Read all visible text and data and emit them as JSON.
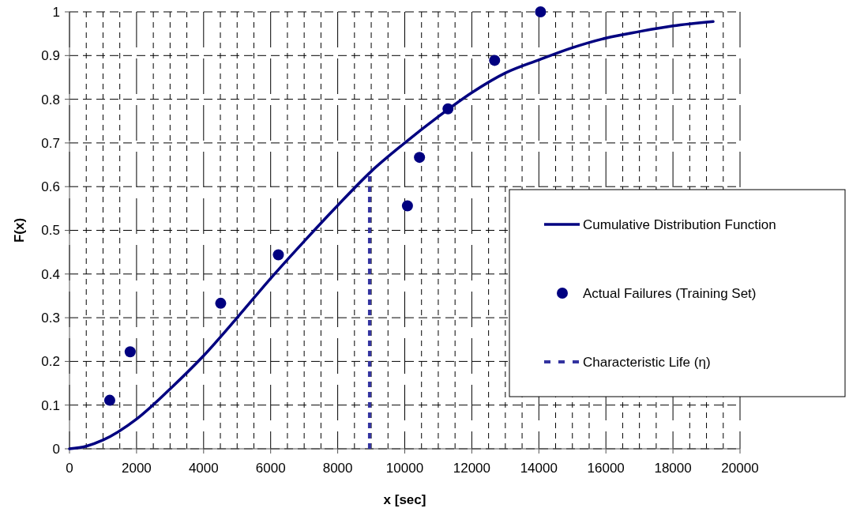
{
  "chart_data": {
    "type": "line",
    "xlabel": "x [sec]",
    "ylabel": "F(x)",
    "xlim": [
      0,
      20000
    ],
    "ylim": [
      0,
      1
    ],
    "xticks": [
      0,
      {
        "value": 500,
        "label": null
      },
      {
        "value": 1000,
        "label": null
      },
      {
        "value": 1500,
        "label": null
      },
      2000,
      {
        "value": 2500,
        "label": null
      },
      {
        "value": 3000,
        "label": null
      },
      {
        "value": 3500,
        "label": null
      },
      4000,
      {
        "value": 4500,
        "label": null
      },
      {
        "value": 5000,
        "label": null
      },
      {
        "value": 5500,
        "label": null
      },
      6000,
      {
        "value": 6500,
        "label": null
      },
      {
        "value": 7000,
        "label": null
      },
      {
        "value": 7500,
        "label": null
      },
      8000,
      {
        "value": 8500,
        "label": null
      },
      {
        "value": 9000,
        "label": null
      },
      {
        "value": 9500,
        "label": null
      },
      10000,
      {
        "value": 10500,
        "label": null
      },
      {
        "value": 11000,
        "label": null
      },
      {
        "value": 11500,
        "label": null
      },
      12000,
      {
        "value": 12500,
        "label": null
      },
      {
        "value": 13000,
        "label": null
      },
      {
        "value": 13500,
        "label": null
      },
      14000,
      {
        "value": 14500,
        "label": null
      },
      {
        "value": 15000,
        "label": null
      },
      {
        "value": 15500,
        "label": null
      },
      16000,
      {
        "value": 16500,
        "label": null
      },
      {
        "value": 17000,
        "label": null
      },
      {
        "value": 17500,
        "label": null
      },
      18000,
      {
        "value": 18500,
        "label": null
      },
      {
        "value": 19000,
        "label": null
      },
      {
        "value": 19500,
        "label": null
      },
      20000
    ],
    "yticks": [
      0,
      0.1,
      0.2,
      0.3,
      0.4,
      0.5,
      0.6,
      0.7,
      0.8,
      0.9,
      1
    ],
    "grid": true,
    "legend": "right",
    "series": [
      {
        "name": "Cumulative Distribution Function",
        "color": "#000080",
        "line_style": "solid",
        "x": [
          0,
          500,
          1000,
          2000,
          3000,
          4000,
          5000,
          6000,
          7000,
          8000,
          9000,
          10000,
          11000,
          12000,
          13000,
          14000,
          15000,
          16000,
          17000,
          18000,
          19200
        ],
        "values": [
          0,
          0.006,
          0.02,
          0.068,
          0.137,
          0.213,
          0.3,
          0.39,
          0.475,
          0.557,
          0.635,
          0.7,
          0.76,
          0.815,
          0.86,
          0.89,
          0.918,
          0.94,
          0.955,
          0.968,
          0.978
        ]
      },
      {
        "name": "Actual Failures (Training Set)",
        "type": "scatter",
        "color": "#000080",
        "marker": "circle",
        "x": [
          1200,
          1810,
          4510,
          6230,
          10080,
          10440,
          11290,
          12680,
          14050
        ],
        "values": [
          0.111,
          0.222,
          0.333,
          0.444,
          0.556,
          0.667,
          0.778,
          0.889,
          1
        ]
      },
      {
        "name": "Characteristic Life (η)",
        "color": "#3333a0",
        "line_style": "dashed",
        "x": [
          8950,
          8950
        ],
        "values": [
          0,
          0.632
        ]
      }
    ]
  }
}
